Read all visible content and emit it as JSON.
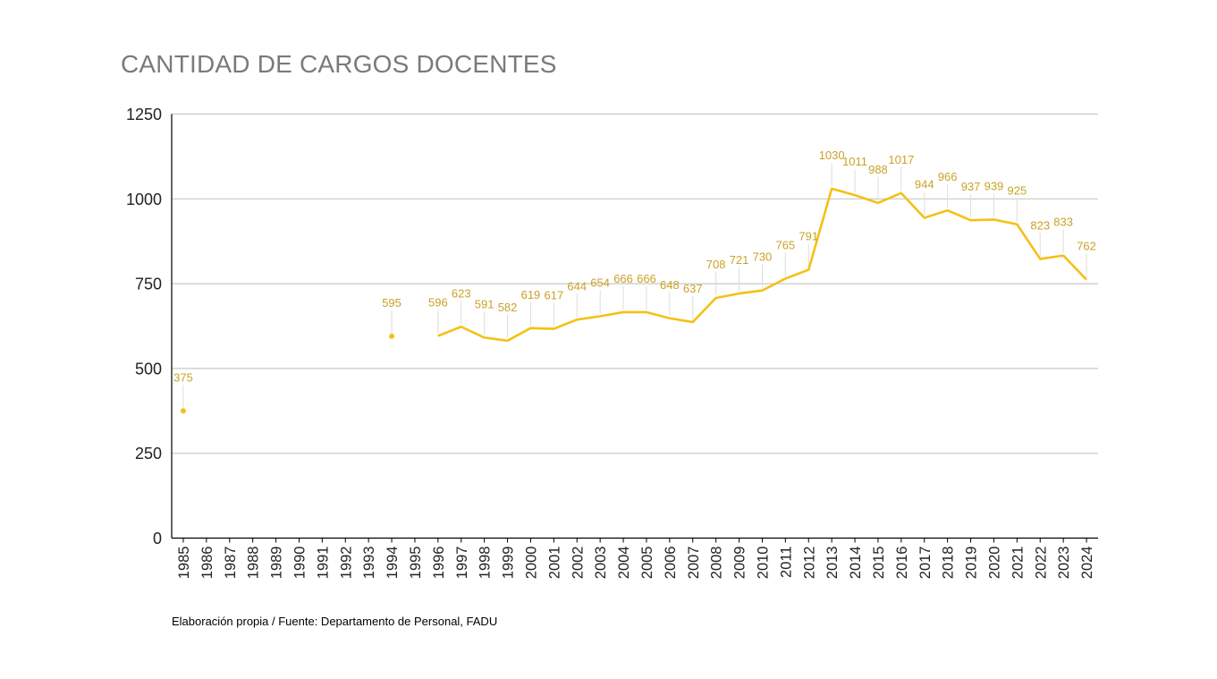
{
  "colors": {
    "line": "#f5c016",
    "label": "#c9a227",
    "grid": "#c8c8c8",
    "title": "#7a7a7a"
  },
  "source_note": "Elaboración propia / Fuente: Departamento de Personal, FADU",
  "chart_data": {
    "type": "line",
    "title": "CANTIDAD DE CARGOS DOCENTES",
    "xlabel": "",
    "ylabel": "",
    "ylim": [
      0,
      1250
    ],
    "yticks": [
      "0",
      "250",
      "500",
      "750",
      "1000",
      "1250"
    ],
    "grid": true,
    "legend": "none",
    "categories": [
      "1985",
      "1986",
      "1987",
      "1988",
      "1989",
      "1990",
      "1991",
      "1992",
      "1993",
      "1994",
      "1995",
      "1996",
      "1997",
      "1998",
      "1999",
      "2000",
      "2001",
      "2002",
      "2003",
      "2004",
      "2005",
      "2006",
      "2007",
      "2008",
      "2009",
      "2010",
      "2011",
      "2012",
      "2013",
      "2014",
      "2015",
      "2016",
      "2017",
      "2018",
      "2019",
      "2020",
      "2021",
      "2022",
      "2023",
      "2024"
    ],
    "values": [
      375,
      null,
      null,
      null,
      null,
      null,
      null,
      null,
      null,
      595,
      null,
      596,
      623,
      591,
      582,
      619,
      617,
      644,
      654,
      666,
      666,
      648,
      637,
      708,
      721,
      730,
      765,
      791,
      1030,
      1011,
      988,
      1017,
      944,
      966,
      937,
      939,
      925,
      823,
      833,
      762
    ]
  }
}
